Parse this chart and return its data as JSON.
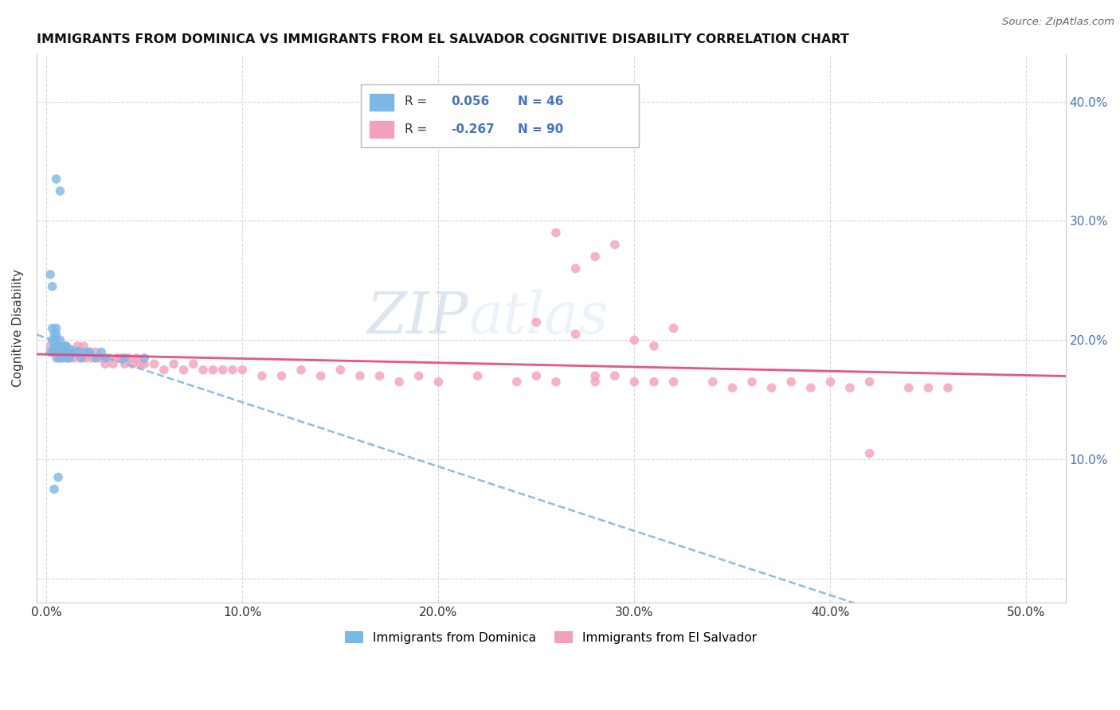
{
  "title": "IMMIGRANTS FROM DOMINICA VS IMMIGRANTS FROM EL SALVADOR COGNITIVE DISABILITY CORRELATION CHART",
  "source": "Source: ZipAtlas.com",
  "ylabel_label": "Cognitive Disability",
  "x_tick_positions": [
    0.0,
    0.1,
    0.2,
    0.3,
    0.4,
    0.5
  ],
  "x_tick_labels": [
    "0.0%",
    "10.0%",
    "20.0%",
    "30.0%",
    "40.0%",
    "50.0%"
  ],
  "y_tick_positions": [
    0.0,
    0.1,
    0.2,
    0.3,
    0.4
  ],
  "y_tick_labels_right": [
    "",
    "10.0%",
    "20.0%",
    "30.0%",
    "40.0%"
  ],
  "xlim": [
    -0.005,
    0.52
  ],
  "ylim": [
    -0.02,
    0.44
  ],
  "r_dominica": 0.056,
  "n_dominica": 46,
  "r_salvador": -0.267,
  "n_salvador": 90,
  "color_dominica": "#7ab8e8",
  "color_salvador": "#f4a0b8",
  "line_color_dominica": "#7ab8e8",
  "line_color_salvador": "#e8407a",
  "bg_color": "#ffffff",
  "grid_color": "#d0d0d0",
  "watermark": "ZIPatlas",
  "dom_x": [
    0.002,
    0.003,
    0.003,
    0.004,
    0.004,
    0.004,
    0.005,
    0.005,
    0.005,
    0.005,
    0.005,
    0.006,
    0.006,
    0.006,
    0.007,
    0.007,
    0.007,
    0.008,
    0.008,
    0.008,
    0.009,
    0.009,
    0.01,
    0.01,
    0.01,
    0.011,
    0.012,
    0.012,
    0.013,
    0.014,
    0.015,
    0.016,
    0.018,
    0.02,
    0.022,
    0.025,
    0.028,
    0.03,
    0.04,
    0.05,
    0.005,
    0.007,
    0.002,
    0.003,
    0.004,
    0.006
  ],
  "dom_y": [
    0.19,
    0.2,
    0.21,
    0.195,
    0.19,
    0.205,
    0.19,
    0.195,
    0.2,
    0.205,
    0.21,
    0.185,
    0.19,
    0.195,
    0.19,
    0.195,
    0.2,
    0.185,
    0.19,
    0.195,
    0.19,
    0.195,
    0.185,
    0.19,
    0.195,
    0.19,
    0.185,
    0.19,
    0.19,
    0.19,
    0.19,
    0.19,
    0.185,
    0.19,
    0.19,
    0.185,
    0.19,
    0.185,
    0.185,
    0.185,
    0.335,
    0.325,
    0.255,
    0.245,
    0.075,
    0.085
  ],
  "sal_x": [
    0.002,
    0.003,
    0.004,
    0.005,
    0.005,
    0.006,
    0.007,
    0.007,
    0.008,
    0.009,
    0.01,
    0.01,
    0.011,
    0.012,
    0.013,
    0.014,
    0.015,
    0.016,
    0.017,
    0.018,
    0.019,
    0.02,
    0.022,
    0.023,
    0.025,
    0.026,
    0.028,
    0.03,
    0.032,
    0.034,
    0.036,
    0.038,
    0.04,
    0.042,
    0.044,
    0.046,
    0.048,
    0.05,
    0.055,
    0.06,
    0.065,
    0.07,
    0.075,
    0.08,
    0.085,
    0.09,
    0.095,
    0.1,
    0.11,
    0.12,
    0.13,
    0.14,
    0.15,
    0.16,
    0.17,
    0.18,
    0.19,
    0.2,
    0.22,
    0.24,
    0.25,
    0.26,
    0.28,
    0.28,
    0.29,
    0.3,
    0.31,
    0.32,
    0.34,
    0.35,
    0.36,
    0.37,
    0.38,
    0.39,
    0.4,
    0.41,
    0.42,
    0.44,
    0.45,
    0.46,
    0.27,
    0.3,
    0.32,
    0.25,
    0.26,
    0.28,
    0.29,
    0.31,
    0.42,
    0.27
  ],
  "sal_y": [
    0.195,
    0.19,
    0.2,
    0.195,
    0.185,
    0.19,
    0.195,
    0.185,
    0.19,
    0.195,
    0.19,
    0.195,
    0.185,
    0.19,
    0.19,
    0.185,
    0.19,
    0.195,
    0.185,
    0.19,
    0.195,
    0.185,
    0.19,
    0.185,
    0.19,
    0.185,
    0.185,
    0.18,
    0.185,
    0.18,
    0.185,
    0.185,
    0.18,
    0.185,
    0.18,
    0.185,
    0.18,
    0.18,
    0.18,
    0.175,
    0.18,
    0.175,
    0.18,
    0.175,
    0.175,
    0.175,
    0.175,
    0.175,
    0.17,
    0.17,
    0.175,
    0.17,
    0.175,
    0.17,
    0.17,
    0.165,
    0.17,
    0.165,
    0.17,
    0.165,
    0.17,
    0.165,
    0.17,
    0.165,
    0.17,
    0.165,
    0.165,
    0.165,
    0.165,
    0.16,
    0.165,
    0.16,
    0.165,
    0.16,
    0.165,
    0.16,
    0.165,
    0.16,
    0.16,
    0.16,
    0.205,
    0.2,
    0.21,
    0.215,
    0.29,
    0.27,
    0.28,
    0.195,
    0.105,
    0.26
  ]
}
